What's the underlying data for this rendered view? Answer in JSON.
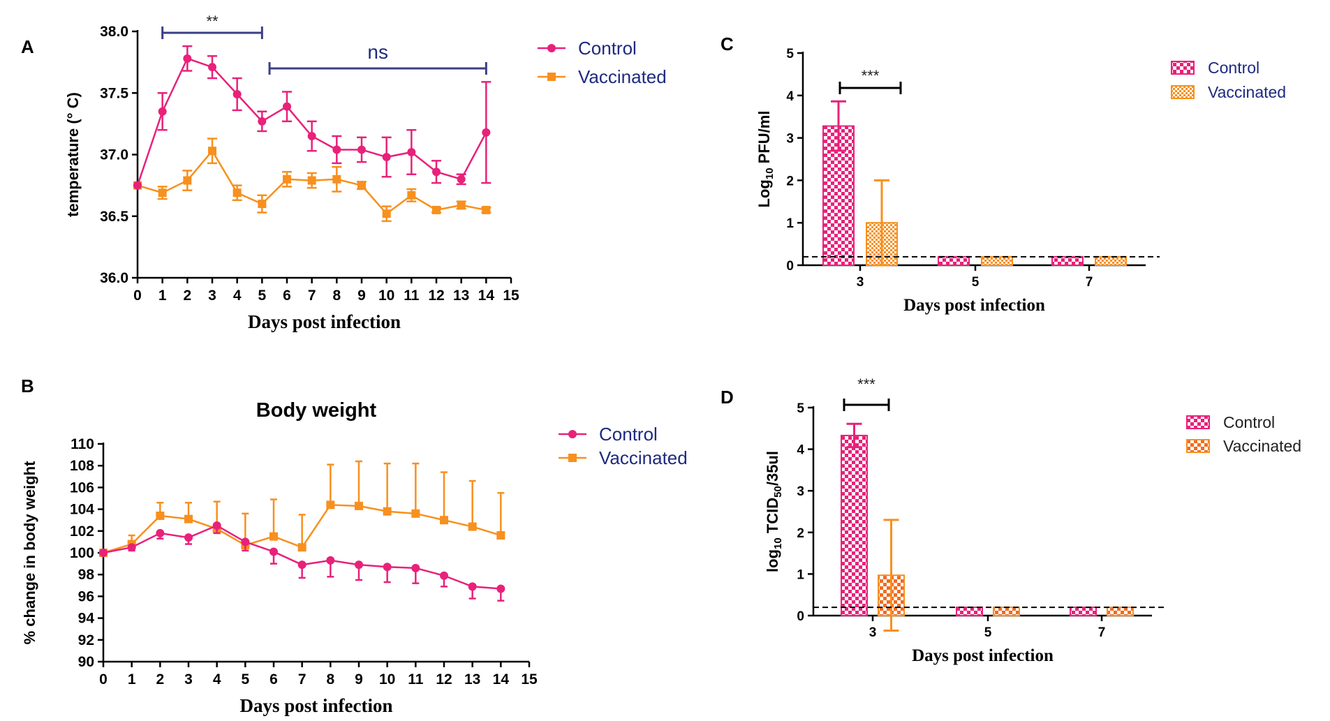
{
  "colors": {
    "control": "#e8217a",
    "vaccinated": "#f7901e",
    "bracket": "#3b3f86",
    "axis": "#000000"
  },
  "chart_data": [
    {
      "panel": "A",
      "type": "line",
      "title": "",
      "xlabel": "Days post infection",
      "ylabel": "temperature  (° C)",
      "xlim": [
        0,
        15
      ],
      "ylim": [
        36.0,
        38.0
      ],
      "xticks": [
        "0",
        "1",
        "2",
        "3",
        "4",
        "5",
        "6",
        "7",
        "8",
        "9",
        "10",
        "11",
        "12",
        "13",
        "14",
        "15"
      ],
      "yticks": [
        "36.0",
        "36.5",
        "37.0",
        "37.5",
        "38.0"
      ],
      "x": [
        0,
        1,
        2,
        3,
        4,
        5,
        6,
        7,
        8,
        9,
        10,
        11,
        12,
        13,
        14
      ],
      "series": [
        {
          "name": "Control",
          "marker": "circle",
          "values": [
            36.75,
            37.35,
            37.78,
            37.71,
            37.49,
            37.27,
            37.39,
            37.15,
            37.04,
            37.04,
            36.98,
            37.02,
            36.86,
            36.8,
            37.18
          ],
          "errors": [
            0.0,
            0.15,
            0.1,
            0.09,
            0.13,
            0.08,
            0.12,
            0.12,
            0.11,
            0.1,
            0.16,
            0.18,
            0.09,
            0.04,
            0.41
          ]
        },
        {
          "name": "Vaccinated",
          "marker": "square",
          "values": [
            36.75,
            36.69,
            36.79,
            37.03,
            36.69,
            36.6,
            36.8,
            36.79,
            36.8,
            36.75,
            36.52,
            36.67,
            36.55,
            36.59,
            36.55
          ],
          "errors": [
            0.0,
            0.05,
            0.08,
            0.1,
            0.06,
            0.07,
            0.06,
            0.06,
            0.1,
            0.03,
            0.06,
            0.05,
            0.02,
            0.03,
            0.02
          ]
        }
      ],
      "brackets": [
        {
          "x_from": 1,
          "x_to": 5,
          "label": "**"
        },
        {
          "x_from": 5.3,
          "x_to": 14,
          "label": "ns"
        }
      ],
      "legend": [
        "Control",
        "Vaccinated"
      ],
      "legend_position": "right"
    },
    {
      "panel": "B",
      "type": "line",
      "title": "Body weight",
      "xlabel": "Days post infection",
      "ylabel": "% change in body weight",
      "xlim": [
        0,
        15
      ],
      "ylim": [
        90,
        110
      ],
      "xticks": [
        "0",
        "1",
        "2",
        "3",
        "4",
        "5",
        "6",
        "7",
        "8",
        "9",
        "10",
        "11",
        "12",
        "13",
        "14",
        "15"
      ],
      "yticks": [
        "90",
        "92",
        "94",
        "96",
        "98",
        "100",
        "102",
        "104",
        "106",
        "108",
        "110"
      ],
      "x": [
        0,
        1,
        2,
        3,
        4,
        5,
        6,
        7,
        8,
        9,
        10,
        11,
        12,
        13,
        14
      ],
      "series": [
        {
          "name": "Control",
          "marker": "circle",
          "values": [
            100,
            100.5,
            101.8,
            101.4,
            102.5,
            101,
            100.1,
            98.9,
            99.3,
            98.9,
            98.7,
            98.6,
            97.9,
            96.9,
            96.7
          ],
          "errors": [
            0,
            0.3,
            0.5,
            0.6,
            0.7,
            0.8,
            1.1,
            1.2,
            1.5,
            1.4,
            1.4,
            1.4,
            1.0,
            1.1,
            1.1
          ]
        },
        {
          "name": "Vaccinated",
          "marker": "square",
          "values": [
            100,
            100.8,
            103.4,
            103.1,
            102.2,
            100.7,
            101.5,
            100.5,
            104.4,
            104.3,
            103.8,
            103.6,
            103,
            102.4,
            101.6
          ],
          "errors": [
            0,
            0.8,
            1.2,
            1.5,
            2.5,
            2.9,
            3.4,
            3.0,
            3.7,
            4.1,
            4.4,
            4.6,
            4.4,
            4.2,
            3.9
          ]
        }
      ],
      "legend": [
        "Control",
        "Vaccinated"
      ],
      "legend_position": "right"
    },
    {
      "panel": "C",
      "type": "bar",
      "title": "",
      "xlabel": "Days post infection",
      "ylabel_main": "Log",
      "ylabel_sub": "10",
      "ylabel_tail": " PFU/ml",
      "ylim": [
        0,
        5
      ],
      "yticks": [
        "0",
        "1",
        "2",
        "3",
        "4",
        "5"
      ],
      "categories": [
        "3",
        "5",
        "7"
      ],
      "series": [
        {
          "name": "Control",
          "values": [
            3.28,
            0.2,
            0.2
          ],
          "errors": [
            0.58,
            0,
            0
          ]
        },
        {
          "name": "Vaccinated",
          "values": [
            1.0,
            0.2,
            0.2
          ],
          "errors": [
            1.0,
            0,
            0
          ]
        }
      ],
      "detection_limit": 0.2,
      "brackets": [
        {
          "label": "***"
        }
      ],
      "legend": [
        "Control",
        "Vaccinated"
      ],
      "legend_position": "top-right"
    },
    {
      "panel": "D",
      "type": "bar",
      "title": "",
      "xlabel": "Days post infection",
      "ylabel_main": "log",
      "ylabel_sub": "10",
      "ylabel_mid": " TCID",
      "ylabel_sub2": "50",
      "ylabel_tail": "/35ul",
      "ylim": [
        0,
        5
      ],
      "yticks": [
        "0",
        "1",
        "2",
        "3",
        "4",
        "5"
      ],
      "categories": [
        "3",
        "5",
        "7"
      ],
      "series": [
        {
          "name": "Control",
          "values": [
            4.33,
            0.2,
            0.2
          ],
          "errors": [
            0.28,
            0,
            0
          ]
        },
        {
          "name": "Vaccinated",
          "values": [
            0.97,
            0.2,
            0.2
          ],
          "errors": [
            1.33,
            0,
            0
          ]
        }
      ],
      "detection_limit": 0.2,
      "brackets": [
        {
          "label": "***"
        }
      ],
      "legend": [
        "Control",
        "Vaccinated"
      ],
      "legend_position": "top-right"
    }
  ]
}
